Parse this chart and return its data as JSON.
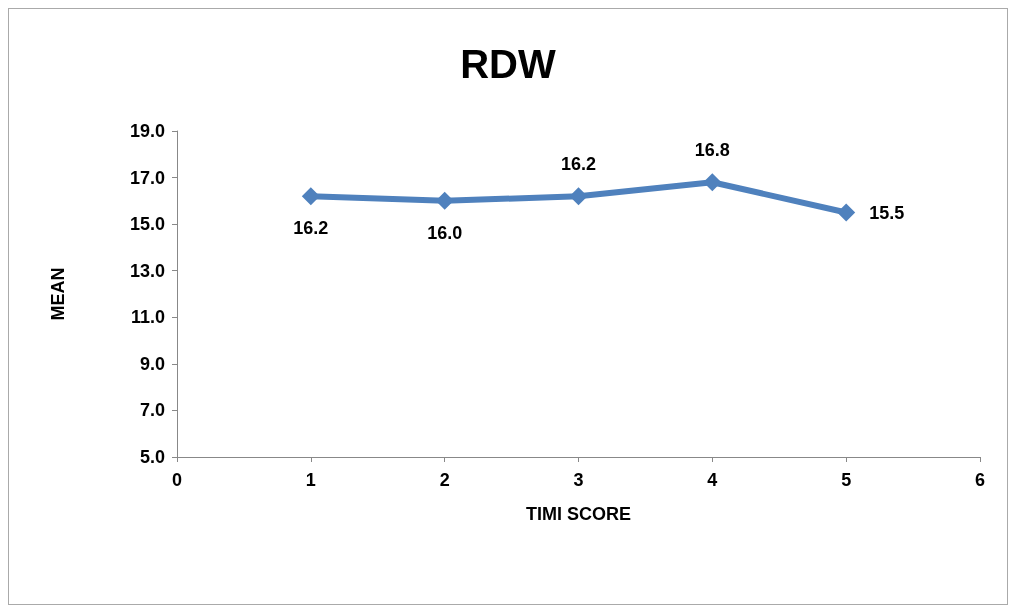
{
  "chart_data": {
    "type": "line",
    "title": "RDW",
    "xlabel": "TIMI SCORE",
    "ylabel": "MEAN",
    "x": [
      1,
      2,
      3,
      4,
      5
    ],
    "series": [
      {
        "color": "#4f81bd",
        "values": [
          16.2,
          16.0,
          16.2,
          16.8,
          15.5
        ],
        "value_labels": [
          "16.2",
          "16.0",
          "16.2",
          "16.8",
          "15.5"
        ]
      }
    ],
    "xlim": [
      0,
      6
    ],
    "xticks": [
      0,
      1,
      2,
      3,
      4,
      5,
      6
    ],
    "ylim": [
      5,
      19
    ],
    "yticks": [
      {
        "value": 5,
        "label": "5.0"
      },
      {
        "value": 7,
        "label": "7.0"
      },
      {
        "value": 9,
        "label": "9.0"
      },
      {
        "value": 11,
        "label": "11.0"
      },
      {
        "value": 13,
        "label": "13.0"
      },
      {
        "value": 15,
        "label": "15.0"
      },
      {
        "value": 17,
        "label": "17.0"
      },
      {
        "value": 19,
        "label": "19.0"
      }
    ],
    "marker": "diamond",
    "line_style": "solid"
  }
}
